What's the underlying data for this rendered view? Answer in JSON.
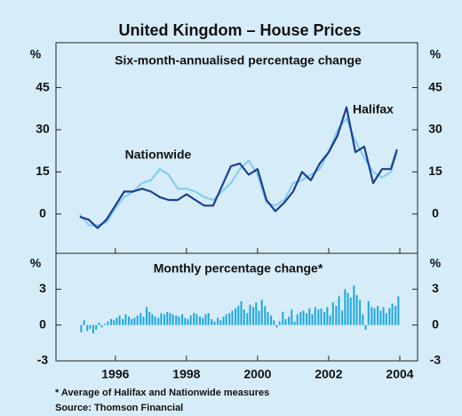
{
  "title": "United Kingdom – House Prices",
  "notes": [
    "*      Average of Halifax and Nationwide measures",
    "Source: Thomson Financial"
  ],
  "chart_data": [
    {
      "type": "line",
      "title": "Six-month-annualised percentage change",
      "y_unit": "%",
      "xlim": [
        1994.33,
        2004.5
      ],
      "ylim": [
        -14,
        61
      ],
      "yticks": [
        0,
        15,
        30,
        45
      ],
      "x": [
        1995.0,
        1995.25,
        1995.5,
        1995.75,
        1996.0,
        1996.25,
        1996.5,
        1996.75,
        1997.0,
        1997.25,
        1997.5,
        1997.75,
        1998.0,
        1998.25,
        1998.5,
        1998.75,
        1999.0,
        1999.25,
        1999.5,
        1999.75,
        2000.0,
        2000.25,
        2000.5,
        2000.75,
        2001.0,
        2001.25,
        2001.5,
        2001.75,
        2002.0,
        2002.25,
        2002.5,
        2002.75,
        2003.0,
        2003.25,
        2003.5,
        2003.75,
        2003.92
      ],
      "series": [
        {
          "name": "Nationwide",
          "color": "#86cdef",
          "values": [
            0,
            -4,
            -4,
            -3,
            2,
            6,
            8,
            11,
            12,
            16,
            14,
            9,
            9,
            8,
            6,
            5,
            8,
            11,
            16,
            19,
            14,
            4,
            3,
            5,
            11,
            12,
            14,
            16,
            22,
            30,
            34,
            26,
            20,
            15,
            13,
            15,
            22
          ]
        },
        {
          "name": "Halifax",
          "color": "#1b3f8f",
          "values": [
            -1,
            -2,
            -5,
            -2,
            3,
            8,
            8,
            9,
            8,
            6,
            5,
            5,
            7,
            5,
            3,
            3,
            10,
            17,
            18,
            14,
            16,
            5,
            1,
            4,
            8,
            15,
            12,
            18,
            22,
            28,
            38,
            22,
            24,
            11,
            16,
            16,
            23
          ]
        }
      ]
    },
    {
      "type": "bar",
      "title": "Monthly percentage change*",
      "y_unit": "%",
      "color": "#1ea7dc",
      "xlim": [
        1994.33,
        2004.5
      ],
      "ylim": [
        -3,
        6
      ],
      "yticks": [
        -3,
        0,
        3
      ],
      "xticks": [
        1996,
        1998,
        2000,
        2002,
        2004
      ],
      "x": [
        1995.04,
        1995.12,
        1995.21,
        1995.29,
        1995.38,
        1995.46,
        1995.54,
        1995.62,
        1995.71,
        1995.79,
        1995.88,
        1995.96,
        1996.04,
        1996.12,
        1996.21,
        1996.29,
        1996.38,
        1996.46,
        1996.54,
        1996.62,
        1996.71,
        1996.79,
        1996.88,
        1996.96,
        1997.04,
        1997.12,
        1997.21,
        1997.29,
        1997.38,
        1997.46,
        1997.54,
        1997.62,
        1997.71,
        1997.79,
        1997.88,
        1997.96,
        1998.04,
        1998.12,
        1998.21,
        1998.29,
        1998.38,
        1998.46,
        1998.54,
        1998.62,
        1998.71,
        1998.79,
        1998.88,
        1998.96,
        1999.04,
        1999.12,
        1999.21,
        1999.29,
        1999.38,
        1999.46,
        1999.54,
        1999.62,
        1999.71,
        1999.79,
        1999.88,
        1999.96,
        2000.04,
        2000.12,
        2000.21,
        2000.29,
        2000.38,
        2000.46,
        2000.54,
        2000.62,
        2000.71,
        2000.79,
        2000.88,
        2000.96,
        2001.04,
        2001.12,
        2001.21,
        2001.29,
        2001.38,
        2001.46,
        2001.54,
        2001.62,
        2001.71,
        2001.79,
        2001.88,
        2001.96,
        2002.04,
        2002.12,
        2002.21,
        2002.29,
        2002.38,
        2002.46,
        2002.54,
        2002.62,
        2002.71,
        2002.79,
        2002.88,
        2002.96,
        2003.04,
        2003.12,
        2003.21,
        2003.29,
        2003.38,
        2003.46,
        2003.54,
        2003.62,
        2003.71,
        2003.79,
        2003.88,
        2003.96
      ],
      "values": [
        -0.6,
        0.4,
        -0.5,
        -0.3,
        -0.7,
        -0.4,
        0.2,
        -0.2,
        0.1,
        0.3,
        0.5,
        0.4,
        0.6,
        0.8,
        0.5,
        0.9,
        0.7,
        0.5,
        0.6,
        0.8,
        1.0,
        0.7,
        1.5,
        1.1,
        0.9,
        0.7,
        0.6,
        1.0,
        0.9,
        1.1,
        1.0,
        0.9,
        0.8,
        0.7,
        0.9,
        0.6,
        0.5,
        0.8,
        1.0,
        0.9,
        0.7,
        0.6,
        0.9,
        1.0,
        0.5,
        0.3,
        0.6,
        0.4,
        0.7,
        0.9,
        1.0,
        1.2,
        1.4,
        1.6,
        2.0,
        1.3,
        1.0,
        1.7,
        1.5,
        1.9,
        1.2,
        2.1,
        1.6,
        1.1,
        0.8,
        0.4,
        -0.2,
        0.3,
        1.1,
        0.5,
        0.7,
        1.3,
        0.3,
        0.9,
        1.1,
        1.2,
        1.0,
        1.4,
        0.9,
        1.5,
        1.3,
        1.4,
        1.1,
        1.5,
        0.8,
        1.9,
        1.6,
        2.4,
        1.2,
        3.0,
        2.7,
        2.3,
        3.3,
        2.5,
        2.1,
        0.9,
        -0.4,
        2.0,
        1.5,
        1.4,
        1.6,
        1.2,
        1.5,
        1.0,
        1.4,
        1.8,
        1.6,
        2.4
      ]
    }
  ]
}
